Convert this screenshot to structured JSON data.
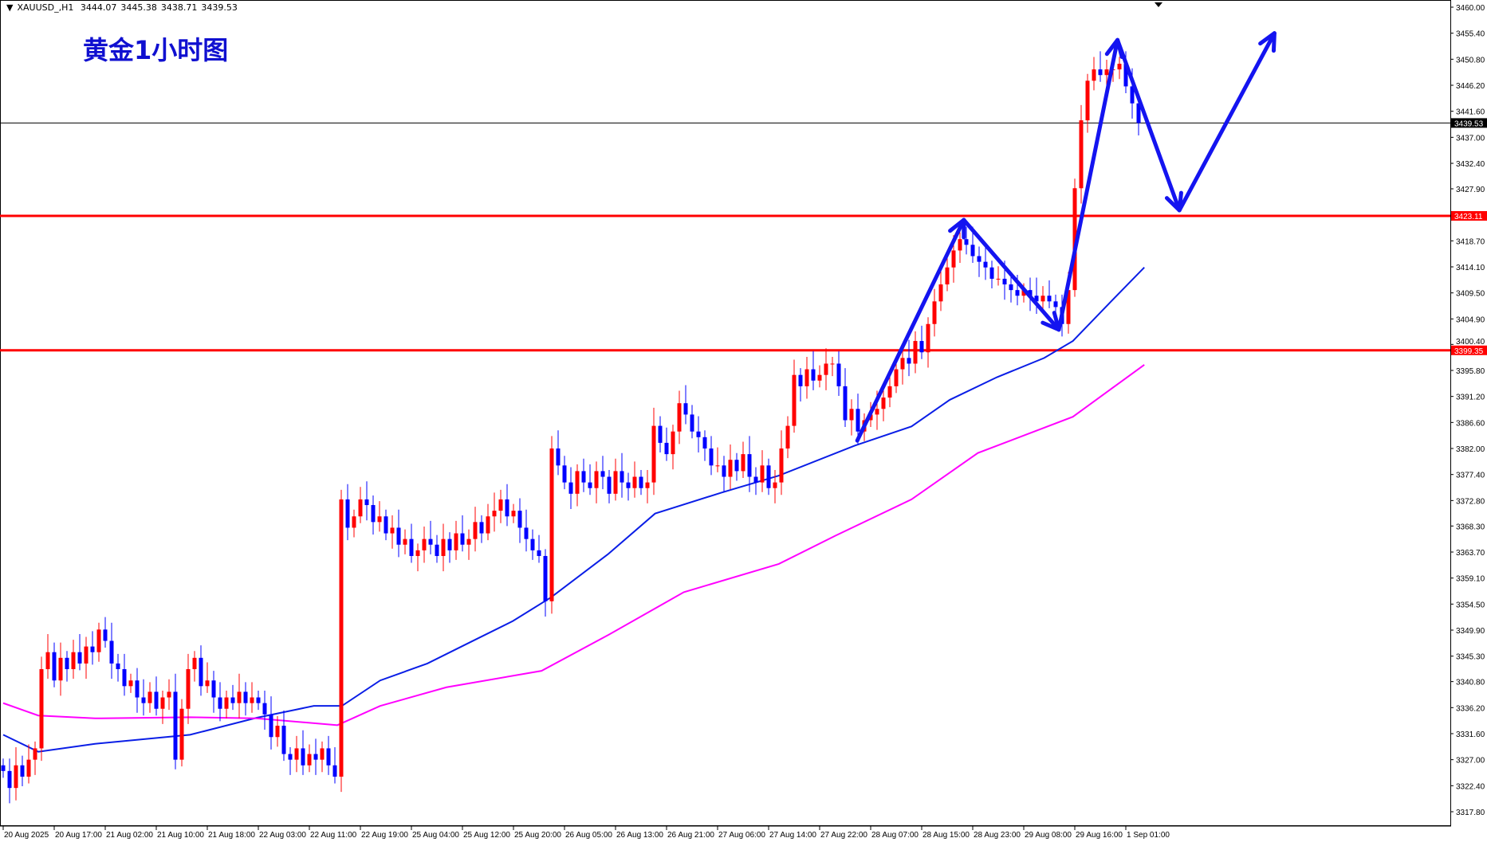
{
  "header": {
    "symbol": "XAUUSD_,H1",
    "open": "3444.07",
    "high": "3445.38",
    "low": "3438.71",
    "close": "3439.53"
  },
  "annotation_title": "黄金1小时图",
  "colors": {
    "up_candle": "#ff0000",
    "down_candle": "#0000ff",
    "ma_fast": "#0a1ee6",
    "ma_slow": "#ff00ff",
    "level_line": "#ff0000",
    "arrow": "#1414f0",
    "current_price_line": "#000000"
  },
  "chart_data": {
    "type": "candlestick",
    "title": "",
    "ylim": [
      3317.8,
      3460.0
    ],
    "y_ticks": [
      "3460.00",
      "3455.40",
      "3450.80",
      "3446.20",
      "3441.60",
      "3437.00",
      "3432.40",
      "3427.90",
      "3418.70",
      "3414.10",
      "3409.50",
      "3404.90",
      "3400.40",
      "3395.80",
      "3391.20",
      "3386.60",
      "3382.00",
      "3377.40",
      "3372.80",
      "3368.30",
      "3363.70",
      "3359.10",
      "3354.50",
      "3349.90",
      "3345.30",
      "3340.80",
      "3336.20",
      "3331.60",
      "3327.00",
      "3322.40",
      "3317.80"
    ],
    "x_ticks": [
      "20 Aug 2025",
      "20 Aug 17:00",
      "21 Aug 02:00",
      "21 Aug 10:00",
      "21 Aug 18:00",
      "22 Aug 03:00",
      "22 Aug 11:00",
      "22 Aug 19:00",
      "25 Aug 04:00",
      "25 Aug 12:00",
      "25 Aug 20:00",
      "26 Aug 05:00",
      "26 Aug 13:00",
      "26 Aug 21:00",
      "27 Aug 06:00",
      "27 Aug 14:00",
      "27 Aug 22:00",
      "28 Aug 07:00",
      "28 Aug 15:00",
      "28 Aug 23:00",
      "29 Aug 08:00",
      "29 Aug 16:00",
      "1 Sep 01:00"
    ],
    "x_tick_every_bars": 8,
    "closes": [
      3325,
      3322,
      3326,
      3324,
      3327,
      3329,
      3343,
      3346,
      3341,
      3345,
      3343,
      3346,
      3344,
      3347,
      3346,
      3350,
      3348,
      3344,
      3343,
      3340,
      3341,
      3338,
      3337,
      3339,
      3336,
      3338,
      3339,
      3327,
      3336,
      3343,
      3345,
      3340,
      3341,
      3338,
      3336,
      3338,
      3337,
      3339,
      3337,
      3338,
      3337,
      3335,
      3331,
      3333,
      3328,
      3327,
      3329,
      3326,
      3328,
      3327,
      3329,
      3326,
      3324,
      3373,
      3368,
      3370,
      3373,
      3372,
      3369,
      3370,
      3367,
      3368,
      3365,
      3366,
      3363,
      3364,
      3366,
      3365,
      3363,
      3366,
      3364,
      3367,
      3365,
      3366,
      3369,
      3367,
      3370,
      3371,
      3373,
      3370,
      3371,
      3368,
      3366,
      3364,
      3363,
      3355,
      3382,
      3379,
      3376,
      3374,
      3378,
      3376,
      3375,
      3378,
      3377,
      3374,
      3378,
      3376,
      3375,
      3377,
      3375,
      3376,
      3386,
      3383,
      3381,
      3385,
      3390,
      3388,
      3385,
      3384,
      3382,
      3379,
      3379,
      3377,
      3380,
      3378,
      3381,
      3377,
      3376,
      3379,
      3375,
      3376,
      3382,
      3386,
      3395,
      3393,
      3396,
      3394,
      3395,
      3397,
      3397,
      3393,
      3387,
      3389,
      3385,
      3387,
      3388,
      3389,
      3391,
      3393,
      3396,
      3398,
      3397,
      3401,
      3399,
      3404,
      3408,
      3411,
      3414,
      3417,
      3419,
      3418,
      3416,
      3415,
      3414,
      3412,
      3412,
      3411,
      3410,
      3409,
      3410,
      3409,
      3408,
      3409,
      3408,
      3407,
      3404,
      3410,
      3428,
      3440,
      3447,
      3449,
      3448,
      3449,
      3449,
      3450,
      3446,
      3443,
      3439.53
    ],
    "first_open": 3326,
    "moving_averages": [
      {
        "color_key": "ma_fast",
        "points": [
          [
            0,
            3331.4
          ],
          [
            5.5,
            3328.4
          ],
          [
            14.4,
            3329.8
          ],
          [
            29.3,
            3331.4
          ],
          [
            39.7,
            3334.4
          ],
          [
            48.7,
            3336.5
          ],
          [
            53.1,
            3336.5
          ],
          [
            59.1,
            3341.0
          ],
          [
            66.5,
            3344.0
          ],
          [
            74,
            3348.2
          ],
          [
            79.9,
            3351.5
          ],
          [
            85.9,
            3355.7
          ],
          [
            94.8,
            3363.3
          ],
          [
            102.2,
            3370.5
          ],
          [
            112.6,
            3374.2
          ],
          [
            121.6,
            3377.2
          ],
          [
            133.5,
            3382.5
          ],
          [
            142.4,
            3385.9
          ],
          [
            148.4,
            3390.6
          ],
          [
            155.8,
            3394.6
          ],
          [
            163.2,
            3398.0
          ],
          [
            167.7,
            3401.0
          ],
          [
            173.7,
            3408.0
          ],
          [
            178.9,
            3414.0
          ]
        ]
      },
      {
        "color_key": "ma_slow",
        "points": [
          [
            0,
            3337.0
          ],
          [
            5.5,
            3334.8
          ],
          [
            14.4,
            3334.3
          ],
          [
            29.3,
            3334.5
          ],
          [
            39.7,
            3334.3
          ],
          [
            52.4,
            3333.1
          ],
          [
            59.1,
            3336.5
          ],
          [
            69.5,
            3339.8
          ],
          [
            84.4,
            3342.7
          ],
          [
            94.8,
            3349.0
          ],
          [
            106.7,
            3356.6
          ],
          [
            121.6,
            3361.6
          ],
          [
            130.5,
            3366.6
          ],
          [
            142.4,
            3373.0
          ],
          [
            152.8,
            3381.2
          ],
          [
            167.7,
            3387.6
          ],
          [
            178.9,
            3396.8
          ]
        ]
      }
    ],
    "horizontal_levels": [
      {
        "price": 3423.11,
        "label": "3423.11"
      },
      {
        "price": 3399.35,
        "label": "3399.35"
      }
    ],
    "current_price": {
      "price": 3439.53,
      "label": "3439.53"
    },
    "arrow_path": [
      [
        133.9,
        3383.4
      ],
      [
        150.6,
        3422.4
      ],
      [
        165.5,
        3403.0
      ],
      [
        174.7,
        3454.2
      ],
      [
        184.4,
        3424.1
      ],
      [
        199.3,
        3455.4
      ]
    ]
  }
}
